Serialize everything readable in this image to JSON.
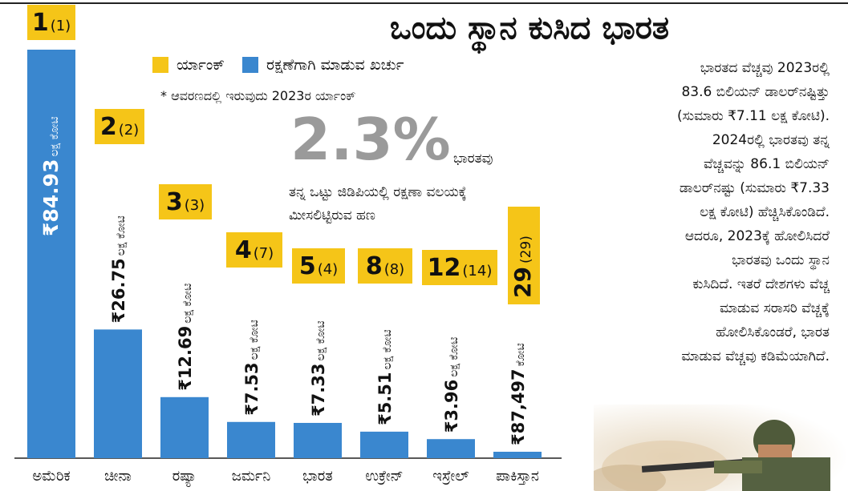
{
  "title": "ಒಂದು ಸ್ಥಾನ ಕುಸಿದ ಭಾರತ",
  "legend": {
    "rank": "ರ್ಯಾಂಕ್",
    "spend": "ರಕ್ಷಣೆಗಾಗಿ ಮಾಡುವ ಖರ್ಚು"
  },
  "note": "* ಆವರಣದಲ್ಲಿ ಇರುವುದು 2023ರ ರ್ಯಾಂಕ್",
  "highlight": {
    "value": "2.3%",
    "side": "ಭಾರತವು",
    "desc": "ತನ್ನ ಒಟ್ಟು ಜಿಡಿಪಿಯಲ್ಲಿ ರಕ್ಷಣಾ ವಲಯಕ್ಕೆ ಮೀಸಲಿಟ್ಟಿರುವ ಹಣ"
  },
  "paragraph_lines": [
    "ಭಾರತದ ವೆಚ್ಚವು 2023ರಲ್ಲಿ",
    "83.6 ಬಿಲಿಯನ್ ಡಾಲರ್‌ನಷ್ಟಿತ್ತು",
    "(ಸುಮಾರು ₹7.11 ಲಕ್ಷ ಕೋಟಿ).",
    "2024ರಲ್ಲಿ ಭಾರತವು ತನ್ನ",
    "ವೆಚ್ಚವನ್ನು 86.1 ಬಿಲಿಯನ್",
    "ಡಾಲರ್‌ನಷ್ಟು (ಸುಮಾರು ₹7.33",
    "ಲಕ್ಷ ಕೋಟಿ) ಹೆಚ್ಚಿಸಿಕೊಂಡಿದೆ.",
    "ಆದರೂ, 2023ಕ್ಕೆ ಹೋಲಿಸಿದರೆ",
    "ಭಾರತವು ಒಂದು ಸ್ಥಾನ",
    "ಕುಸಿದಿದೆ. ಇತರೆ ದೇಶಗಳು ವೆಚ್ಚ",
    "ಮಾಡುವ ಸರಾಸರಿ ವೆಚ್ಚಕ್ಕೆ",
    "ಹೋಲಿಸಿಕೊಂಡರೆ, ಭಾರತ",
    "ಮಾಡುವ ವೆಚ್ಚವು ಕಡಿಮೆಯಾಗಿದೆ."
  ],
  "colors": {
    "bar": "#3a87cf",
    "rank": "#f5c518",
    "text": "#111111"
  },
  "chart_data": {
    "type": "bar",
    "categories": [
      "ಅಮೆರಿಕ",
      "ಚೀನಾ",
      "ರಷ್ಯಾ",
      "ಜರ್ಮನಿ",
      "ಭಾರತ",
      "ಉಕ್ರೇನ್",
      "ಇಸ್ರೇಲ್",
      "ಪಾಕಿಸ್ತಾನ"
    ],
    "values_lakh_crore": [
      84.93,
      26.75,
      12.69,
      7.53,
      7.33,
      5.51,
      3.96,
      0.87497
    ],
    "value_labels": [
      {
        "num": "₹84.93",
        "unit": "ಲಕ್ಷ ಕೋಟಿ"
      },
      {
        "num": "₹26.75",
        "unit": "ಲಕ್ಷ ಕೋಟಿ"
      },
      {
        "num": "₹12.69",
        "unit": "ಲಕ್ಷ ಕೋಟಿ"
      },
      {
        "num": "₹7.53",
        "unit": "ಲಕ್ಷ ಕೋಟಿ"
      },
      {
        "num": "₹7.33",
        "unit": "ಲಕ್ಷ ಕೋಟಿ"
      },
      {
        "num": "₹5.51",
        "unit": "ಲಕ್ಷ ಕೋಟಿ"
      },
      {
        "num": "₹3.96",
        "unit": "ಲಕ್ಷ ಕೋಟಿ"
      },
      {
        "num": "₹87,497",
        "unit": "ಕೋಟಿ"
      }
    ],
    "rank_2024": [
      1,
      2,
      3,
      4,
      5,
      8,
      12,
      29
    ],
    "rank_2023": [
      1,
      2,
      3,
      7,
      4,
      8,
      14,
      29
    ],
    "rank_labels": [
      "1",
      "2",
      "3",
      "4",
      "5",
      "8",
      "12",
      "29"
    ],
    "rank_prev_labels": [
      "(1)",
      "(2)",
      "(3)",
      "(7)",
      "(4)",
      "(8)",
      "(14)",
      "(29)"
    ]
  }
}
